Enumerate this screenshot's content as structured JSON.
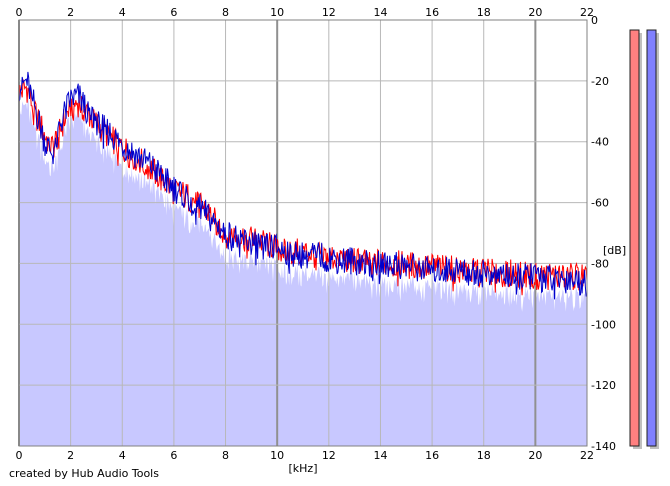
{
  "credit": "created by Hub Audio Tools",
  "chart_data": {
    "type": "area",
    "xlabel": "[kHz]",
    "ylabel": "[dB]",
    "xlim": [
      0,
      22
    ],
    "ylim": [
      -140,
      0
    ],
    "x_ticks": [
      0,
      2,
      4,
      6,
      8,
      10,
      12,
      14,
      16,
      18,
      20,
      22
    ],
    "y_ticks": [
      0,
      -20,
      -40,
      -60,
      -80,
      -100,
      -120,
      -140
    ],
    "grid": true,
    "fill_color": "#c8c8ff",
    "series": [
      {
        "color": "#ff0000",
        "x": [
          0,
          0.3,
          0.6,
          1,
          1.3,
          1.6,
          2,
          2.3,
          2.6,
          3,
          3.5,
          4,
          4.5,
          5,
          5.5,
          6,
          6.5,
          7,
          7.5,
          8,
          8.5,
          9,
          9.5,
          10,
          10.5,
          11,
          11.5,
          12,
          12.5,
          13,
          13.5,
          14,
          14.5,
          15,
          15.5,
          16,
          16.5,
          17,
          17.5,
          18,
          18.5,
          19,
          19.5,
          20,
          20.5,
          21,
          21.5,
          22
        ],
        "values": [
          -24,
          -22,
          -30,
          -38,
          -42,
          -36,
          -28,
          -27,
          -30,
          -34,
          -38,
          -42,
          -45,
          -48,
          -52,
          -56,
          -58,
          -60,
          -65,
          -70,
          -71,
          -72,
          -73,
          -75,
          -76,
          -76,
          -77,
          -78,
          -78,
          -79,
          -79,
          -80,
          -80,
          -80,
          -81,
          -81,
          -81,
          -82,
          -82,
          -82,
          -83,
          -83,
          -83,
          -84,
          -84,
          -84,
          -84,
          -85
        ]
      },
      {
        "color": "#0000cc",
        "x": [
          0,
          0.3,
          0.6,
          1,
          1.3,
          1.6,
          2,
          2.3,
          2.6,
          3,
          3.5,
          4,
          4.5,
          5,
          5.5,
          6,
          6.5,
          7,
          7.5,
          8,
          8.5,
          9,
          9.5,
          10,
          10.5,
          11,
          11.5,
          12,
          12.5,
          13,
          13.5,
          14,
          14.5,
          15,
          15.5,
          16,
          16.5,
          17,
          17.5,
          18,
          18.5,
          19,
          19.5,
          20,
          20.5,
          21,
          21.5,
          22
        ],
        "values": [
          -22,
          -20,
          -28,
          -40,
          -44,
          -34,
          -26,
          -25,
          -29,
          -33,
          -37,
          -41,
          -44,
          -47,
          -51,
          -55,
          -58,
          -61,
          -66,
          -70,
          -72,
          -73,
          -74,
          -75,
          -76,
          -77,
          -77,
          -78,
          -79,
          -79,
          -80,
          -80,
          -80,
          -81,
          -81,
          -82,
          -82,
          -82,
          -83,
          -83,
          -83,
          -84,
          -84,
          -84,
          -85,
          -85,
          -85,
          -86
        ]
      }
    ],
    "level_meters": [
      {
        "color": "#ff8080",
        "value_db": 0
      },
      {
        "color": "#8080ff",
        "value_db": 0
      }
    ]
  }
}
